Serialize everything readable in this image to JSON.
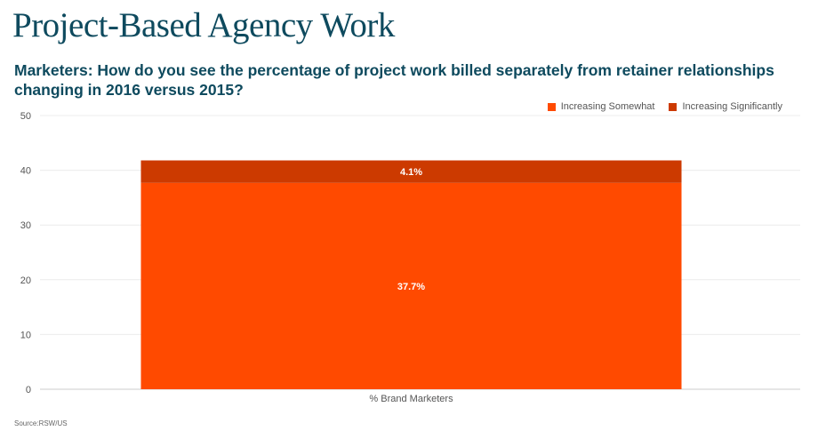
{
  "header": {
    "title": "Project-Based Agency Work",
    "subtitle": "Marketers: How do you see the percentage of project work billed separately from retainer relationships changing in 2016 versus 2015?"
  },
  "legend": {
    "items": [
      {
        "label": "Increasing Somewhat",
        "color": "#ff4a00"
      },
      {
        "label": "Increasing Significantly",
        "color": "#cc3a00"
      }
    ],
    "placement": "top-right"
  },
  "footer": {
    "source": "Source:RSW/US"
  },
  "chart_data": {
    "type": "bar",
    "stacked": true,
    "categories": [
      "% Brand Marketers"
    ],
    "series": [
      {
        "name": "Increasing Somewhat",
        "values": [
          37.7
        ],
        "labels": [
          "37.7%"
        ],
        "color": "#ff4a00"
      },
      {
        "name": "Increasing Significantly",
        "values": [
          4.1
        ],
        "labels": [
          "4.1%"
        ],
        "color": "#cc3a00"
      }
    ],
    "yticks": [
      "0",
      "10",
      "20",
      "30",
      "40",
      "50"
    ],
    "ylim": [
      0,
      50
    ],
    "grid": true
  }
}
